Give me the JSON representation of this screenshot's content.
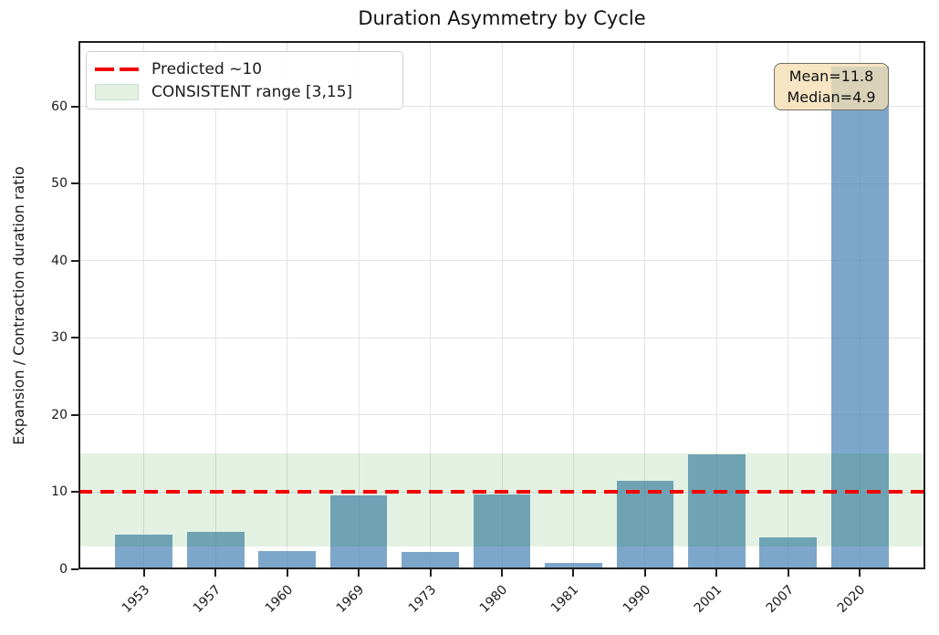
{
  "figure": {
    "title": "Duration Asymmetry by Cycle",
    "ylabel": "Expansion / Contraction duration ratio"
  },
  "legend": {
    "items": [
      {
        "type": "dashed-line",
        "label": "Predicted ~10",
        "color": "#ff0000"
      },
      {
        "type": "patch",
        "label": "CONSISTENT range [3,15]",
        "fill": "#e3f0e2",
        "border": "#c7e0c7"
      }
    ]
  },
  "annotation": {
    "line1": "Mean=11.8",
    "line2": "Median=4.9",
    "bg_color": "#f5deb3"
  },
  "chart_data": {
    "type": "bar",
    "title": "Duration Asymmetry by Cycle",
    "xlabel": "",
    "ylabel": "Expansion / Contraction duration ratio",
    "categories": [
      "1953",
      "1957",
      "1960",
      "1969",
      "1973",
      "1980",
      "1981",
      "1990",
      "2001",
      "2007",
      "2020"
    ],
    "values": [
      4.5,
      4.9,
      2.4,
      9.6,
      2.2,
      9.7,
      0.8,
      11.5,
      14.9,
      4.1,
      65.2
    ],
    "bar_color": "rgba(70,130,180,0.7)",
    "yticks": [
      0,
      10,
      20,
      30,
      40,
      50,
      60
    ],
    "ylim": [
      0,
      68.5
    ],
    "grid": true,
    "legend_position": "upper left",
    "reference_line": {
      "value": 10,
      "label": "Predicted ~10",
      "color": "#ff0000",
      "style": "dashed"
    },
    "band": {
      "from": 3,
      "to": 15,
      "label": "CONSISTENT range [3,15]",
      "color": "rgba(0,128,0,0.11)"
    },
    "annotations": {
      "mean": 11.8,
      "median": 4.9
    }
  }
}
